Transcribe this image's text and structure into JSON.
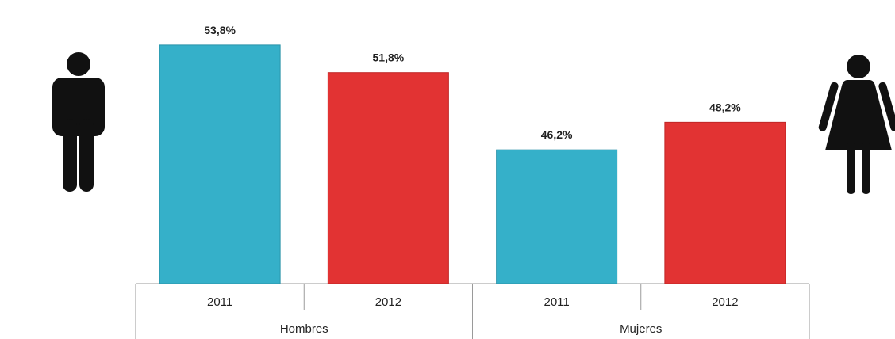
{
  "chart_data": {
    "type": "bar",
    "groups": [
      {
        "name": "Hombres",
        "items": [
          {
            "year": "2011",
            "value": 53.8,
            "label": "53,8%",
            "color": "#35b0c9"
          },
          {
            "year": "2012",
            "value": 51.8,
            "label": "51,8%",
            "color": "#e23333"
          }
        ]
      },
      {
        "name": "Mujeres",
        "items": [
          {
            "year": "2011",
            "value": 46.2,
            "label": "46,2%",
            "color": "#35b0c9"
          },
          {
            "year": "2012",
            "value": 48.2,
            "label": "48,2%",
            "color": "#e23333"
          }
        ]
      }
    ],
    "ylim": [
      36.5,
      55
    ],
    "grid": false,
    "legend": "none",
    "icons": {
      "left": "man-icon",
      "right": "woman-icon"
    }
  }
}
